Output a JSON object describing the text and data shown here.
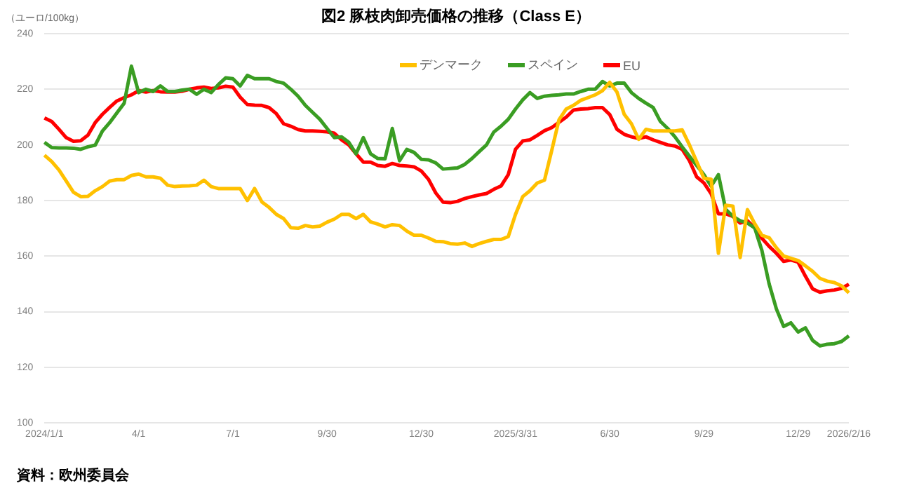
{
  "chart_data": {
    "type": "line",
    "title": "図2  豚枝肉卸売価格の推移（Class E）",
    "ylabel": "（ユーロ/100kg）",
    "annotations": [
      "資料：欧州委員会"
    ],
    "categories": [
      "2024/1/1",
      null,
      null,
      null,
      null,
      null,
      null,
      null,
      null,
      null,
      null,
      null,
      null,
      "4/1",
      null,
      null,
      null,
      null,
      null,
      null,
      null,
      null,
      null,
      null,
      null,
      null,
      "7/1",
      null,
      null,
      null,
      null,
      null,
      null,
      null,
      null,
      null,
      null,
      null,
      null,
      "9/30",
      null,
      null,
      null,
      null,
      null,
      null,
      null,
      null,
      null,
      null,
      null,
      null,
      "12/30",
      null,
      null,
      null,
      null,
      null,
      null,
      null,
      null,
      null,
      null,
      null,
      null,
      "2025/3/31",
      null,
      null,
      null,
      null,
      null,
      null,
      null,
      null,
      null,
      null,
      null,
      null,
      "6/30",
      null,
      null,
      null,
      null,
      null,
      null,
      null,
      null,
      null,
      null,
      null,
      null,
      "9/29",
      null,
      null,
      null,
      null,
      null,
      null,
      null,
      null,
      null,
      null,
      null,
      null,
      "12/29",
      null,
      null,
      null,
      null,
      null,
      null,
      "2026/2/16"
    ],
    "series": [
      {
        "name": "デンマーク",
        "color": "#ffc000",
        "values": [
          196.3,
          194,
          191,
          187,
          183,
          181.4,
          181.5,
          183.5,
          185,
          187,
          187.5,
          187.5,
          189,
          189.5,
          188.5,
          188.5,
          188,
          185.5,
          185,
          185.2,
          185.3,
          185.5,
          187.3,
          185,
          184.3,
          184.3,
          184.3,
          184.3,
          180,
          184.3,
          179.5,
          177.5,
          175,
          173.5,
          170.2,
          170,
          171,
          170.5,
          170.8,
          172.2,
          173.3,
          175,
          175,
          173.5,
          175,
          172.3,
          171.5,
          170.5,
          171.3,
          171,
          169,
          167.5,
          167.5,
          166.5,
          165.3,
          165.2,
          164.5,
          164.3,
          164.7,
          163.5,
          164.5,
          165.3,
          166,
          166,
          167,
          175,
          181.4,
          183.5,
          186.3,
          187.3,
          198,
          209,
          212.9,
          214.2,
          216,
          217,
          218,
          219.5,
          222.5,
          219,
          211,
          207.6,
          202,
          205.6,
          205,
          205,
          205,
          205,
          205.4,
          200,
          194,
          188,
          187.6,
          161,
          178.3,
          178,
          159.5,
          176.7,
          171.7,
          167.5,
          166.6,
          163,
          160,
          159.2,
          158.4,
          156.5,
          154.5,
          152,
          151,
          150.5,
          149.3,
          146.8
        ]
      },
      {
        "name": "スペイン",
        "color": "#3a9d23",
        "values": [
          200.9,
          199,
          198.9,
          198.9,
          198.8,
          198.4,
          199.3,
          199.9,
          205,
          208,
          211.5,
          215,
          228.3,
          218.8,
          220,
          219.2,
          221.2,
          219.2,
          219.2,
          219.7,
          220,
          218.2,
          220,
          218.8,
          221.7,
          224.1,
          223.8,
          221.2,
          225,
          223.8,
          223.8,
          223.8,
          222.8,
          222.2,
          220,
          217.5,
          214.2,
          211.7,
          209.2,
          205.9,
          202.6,
          202.9,
          200.9,
          196.8,
          202.6,
          196.8,
          195.1,
          195,
          205.9,
          194.3,
          198.4,
          197.3,
          194.8,
          194.6,
          193.5,
          191.3,
          191.5,
          191.7,
          193,
          195.1,
          197.6,
          200,
          204.6,
          206.7,
          209.2,
          212.9,
          216.2,
          218.8,
          216.7,
          217.5,
          217.8,
          218,
          218.3,
          218.3,
          219.2,
          220,
          220,
          222.8,
          221.2,
          222.2,
          222.2,
          218.8,
          216.7,
          215,
          213.4,
          208.4,
          205.9,
          202.9,
          199.3,
          195.9,
          192.6,
          189.3,
          185.2,
          189.3,
          176.8,
          174.3,
          172.7,
          171.9,
          170.2,
          162,
          150,
          141,
          134.7,
          136,
          132.7,
          134.2,
          129.7,
          127.7,
          128.3,
          128.5,
          129.3,
          131.3
        ]
      },
      {
        "name": "EU",
        "color": "#ff0000",
        "values": [
          209.7,
          208.4,
          205.6,
          202.6,
          201.3,
          201.5,
          203.5,
          208,
          211,
          213.5,
          215.8,
          217,
          218,
          219.5,
          219,
          219.5,
          219.1,
          219,
          219,
          219.3,
          220,
          220.5,
          220.8,
          220.3,
          220.5,
          221.1,
          220.8,
          217.2,
          214.5,
          214.3,
          214.2,
          213.4,
          211.2,
          207.6,
          206.7,
          205.5,
          205,
          205,
          204.9,
          204.7,
          204.2,
          201.8,
          200,
          196.8,
          193.8,
          193.8,
          192.6,
          192.3,
          193.3,
          192.6,
          192.4,
          192.1,
          190.6,
          187.6,
          182.7,
          179.4,
          179.2,
          179.7,
          180.7,
          181.4,
          182,
          182.5,
          184,
          185.2,
          189.3,
          198.4,
          201.4,
          201.8,
          203.4,
          205.1,
          206.2,
          208.1,
          210,
          212.5,
          212.9,
          213,
          213.4,
          213.4,
          210.9,
          205.6,
          203.8,
          202.9,
          202.3,
          202.9,
          201.8,
          200.9,
          200,
          199.6,
          198.4,
          194.3,
          188.5,
          186.3,
          182.4,
          175.2,
          175.2,
          174.3,
          171.9,
          172.7,
          170.2,
          166.4,
          163.5,
          161,
          158.1,
          158.6,
          157.8,
          152.8,
          148.2,
          147,
          147.5,
          147.8,
          148.4,
          149.9
        ]
      }
    ],
    "ylim": [
      100,
      240
    ],
    "yticks": [
      100,
      120,
      140,
      160,
      180,
      200,
      220,
      240
    ],
    "grid": "y",
    "legend": "top right"
  }
}
